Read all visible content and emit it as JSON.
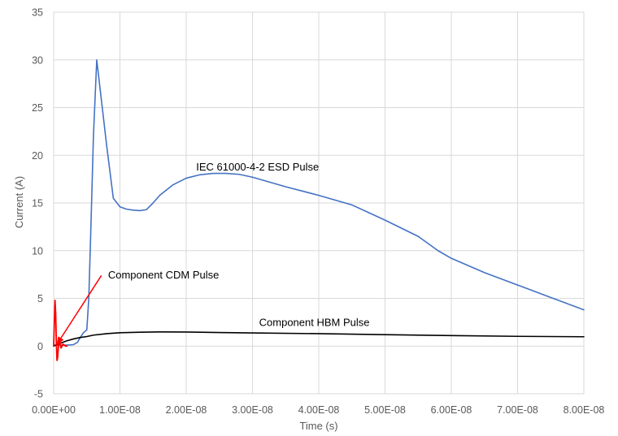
{
  "chart_data": {
    "type": "line",
    "title": "",
    "xlabel": "Time (s)",
    "ylabel": "Current (A)",
    "xlim": [
      0,
      8e-08
    ],
    "ylim": [
      -5,
      35
    ],
    "grid": true,
    "x_ticks": [
      0,
      1e-08,
      2e-08,
      3e-08,
      4e-08,
      5e-08,
      6e-08,
      7e-08,
      8e-08
    ],
    "x_tick_labels": [
      "0.00E+00",
      "1.00E-08",
      "2.00E-08",
      "3.00E-08",
      "4.00E-08",
      "5.00E-08",
      "6.00E-08",
      "7.00E-08",
      "8.00E-08"
    ],
    "y_ticks": [
      -5,
      0,
      5,
      10,
      15,
      20,
      25,
      30,
      35
    ],
    "y_tick_labels": [
      "-5",
      "0",
      "5",
      "10",
      "15",
      "20",
      "25",
      "30",
      "35"
    ],
    "series": [
      {
        "color": "#4472C4",
        "x": [
          0,
          1e-09,
          2e-09,
          3e-09,
          3.6e-09,
          4e-09,
          4.5e-09,
          5e-09,
          5.3e-09,
          5.6e-09,
          6e-09,
          6.5e-09,
          7e-09,
          8e-09,
          9e-09,
          1e-08,
          1.1e-08,
          1.2e-08,
          1.3e-08,
          1.4e-08,
          1.5e-08,
          1.6e-08,
          1.8e-08,
          2e-08,
          2.2e-08,
          2.4e-08,
          2.6e-08,
          2.8e-08,
          3e-08,
          3.5e-08,
          4e-08,
          4.5e-08,
          5e-08,
          5.5e-08,
          5.8e-08,
          6e-08,
          6.5e-08,
          7e-08,
          7.5e-08,
          8e-08
        ],
        "values": [
          0.1,
          0.1,
          0.1,
          0.15,
          0.4,
          0.9,
          1.4,
          1.7,
          5,
          12,
          22,
          30,
          27,
          21,
          15.5,
          14.6,
          14.35,
          14.25,
          14.2,
          14.3,
          15,
          15.8,
          16.9,
          17.6,
          17.95,
          18.1,
          18.1,
          18.0,
          17.7,
          16.7,
          15.8,
          14.8,
          13.2,
          11.5,
          10.0,
          9.2,
          7.7,
          6.4,
          5.1,
          3.8
        ]
      },
      {
        "color": "#000000",
        "x": [
          0,
          1e-09,
          2e-09,
          3e-09,
          4e-09,
          5e-09,
          6e-09,
          8e-09,
          1e-08,
          1.3e-08,
          1.6e-08,
          2e-08,
          2.5e-08,
          3e-08,
          4e-08,
          5e-08,
          6e-08,
          7e-08,
          8e-08
        ],
        "values": [
          0,
          0.3,
          0.55,
          0.75,
          0.9,
          1.0,
          1.15,
          1.3,
          1.4,
          1.45,
          1.48,
          1.47,
          1.42,
          1.38,
          1.3,
          1.2,
          1.1,
          1.02,
          0.98
        ]
      },
      {
        "color": "#FF0000",
        "x": [
          0,
          1e-10,
          2e-10,
          3e-10,
          4e-10,
          5e-10,
          6e-10,
          7e-10,
          8e-10,
          9e-10,
          1e-09,
          1.1e-09,
          1.2e-09,
          1.4e-09,
          1.6e-09,
          1.8e-09,
          2e-09
        ],
        "values": [
          0,
          2.5,
          4.8,
          3.5,
          0.5,
          -1.5,
          -1.2,
          -0.2,
          0.5,
          0.7,
          0.2,
          -0.2,
          -0.1,
          0.2,
          0.1,
          0,
          0
        ]
      }
    ],
    "annotations": [
      {
        "text": "IEC 61000-4-2 ESD Pulse",
        "x": 2.15e-08,
        "y": 18.4
      },
      {
        "text": "Component CDM Pulse",
        "x": 8.2e-09,
        "y": 7.1
      },
      {
        "text": "Component HBM Pulse",
        "x": 3.1e-08,
        "y": 2.1
      }
    ],
    "arrow": {
      "color": "#FF0000",
      "from": [
        7.2e-09,
        7.4
      ],
      "to": [
        5e-10,
        0.2
      ]
    }
  }
}
